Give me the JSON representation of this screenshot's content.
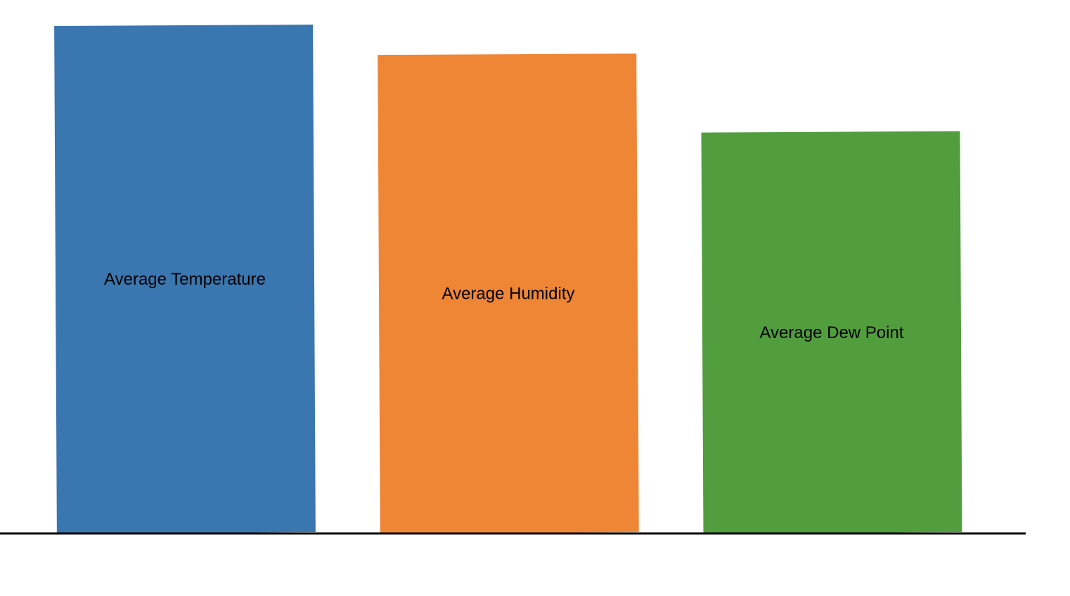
{
  "chart_data": {
    "type": "bar",
    "title": "",
    "xlabel": "",
    "ylabel": "",
    "grid": false,
    "legend": "none",
    "axes_visible": false,
    "categories": [
      "Average Temperature",
      "Average Humidity",
      "Average Dew Point"
    ],
    "values": [
      100,
      94.3,
      79
    ],
    "ylim": [
      0,
      100
    ],
    "colors": [
      "#3A76AF",
      "#EF8636",
      "#529D3E"
    ],
    "baseline_color": "#000000"
  }
}
